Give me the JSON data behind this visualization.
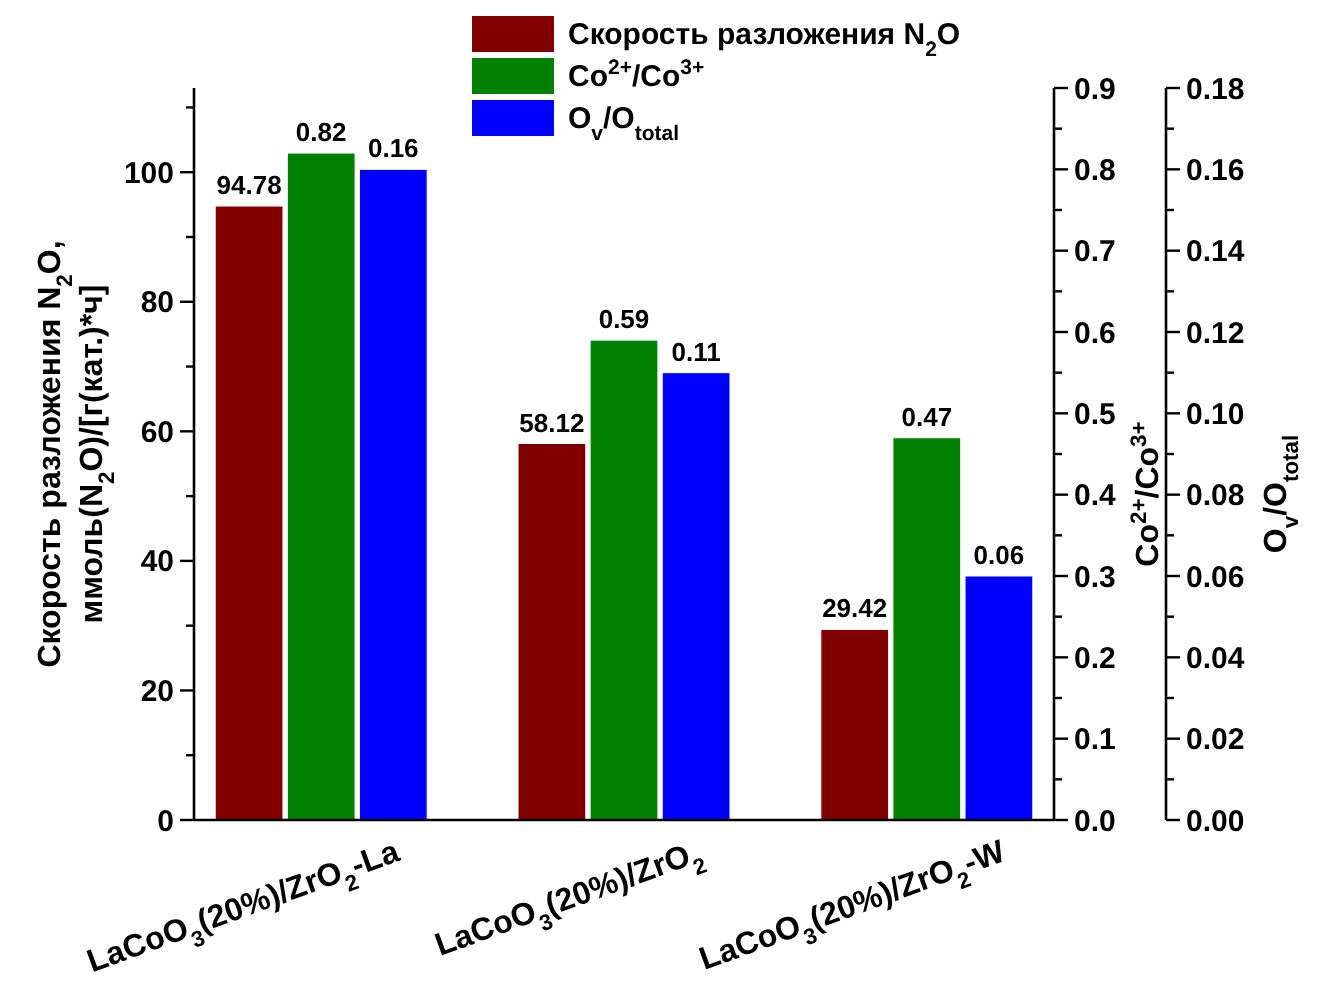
{
  "chart_data": {
    "type": "bar",
    "ylabel": "Скорость разложения N$_{2}$O,\nммоль(N$_{2}$O)/[г(кат.)*ч]",
    "y2label": "Co$^{2+}$/Co$^{3+}$",
    "y3label": "O$_{v}$/O$_{total}$",
    "categories": [
      "LaCoO$_{3}$(20%)/ZrO$_{2}$-La",
      "LaCoO$_{3}$(20%)/ZrO$_{2}$",
      "LaCoO$_{3}$(20%)/ZrO$_{2}$-W"
    ],
    "series": [
      {
        "name": "Скорость разложения N$_{2}$O",
        "color": "#800000",
        "values": [
          94.78,
          58.12,
          29.42
        ]
      },
      {
        "name": "Co$^{2+}$/Co$^{3+}$",
        "color": "#008000",
        "values": [
          0.82,
          0.59,
          0.47
        ],
        "axis": "y2"
      },
      {
        "name": "O$_{v}$/O$_{total}$",
        "color": "#0000ff",
        "values": [
          0.16,
          0.11,
          0.06
        ],
        "axis": "y3"
      }
    ],
    "ylim": [
      0,
      113
    ],
    "yticks": [
      0,
      {
        "value": 10,
        "label": null
      },
      20,
      {
        "value": 30,
        "label": null
      },
      40,
      {
        "value": 50,
        "label": null
      },
      60,
      {
        "value": 70,
        "label": null
      },
      80,
      {
        "value": 90,
        "label": null
      },
      100,
      {
        "value": 110,
        "label": null
      }
    ],
    "y2lim": [
      0,
      0.9
    ],
    "y2ticks": [
      {
        "value": 0,
        "label": "0.0"
      },
      {
        "value": 0.05,
        "label": null
      },
      0.1,
      {
        "value": 0.15,
        "label": null
      },
      0.2,
      {
        "value": 0.25,
        "label": null
      },
      0.3,
      {
        "value": 0.35,
        "label": null
      },
      0.4,
      {
        "value": 0.45,
        "label": null
      },
      0.5,
      {
        "value": 0.55,
        "label": null
      },
      0.6,
      {
        "value": 0.65,
        "label": null
      },
      0.7,
      {
        "value": 0.75,
        "label": null
      },
      0.8,
      {
        "value": 0.85,
        "label": null
      },
      0.9
    ],
    "y3lim": [
      0,
      0.18
    ],
    "y3ticks": [
      {
        "value": 0,
        "label": "0.00"
      },
      {
        "value": 0.01,
        "label": null
      },
      0.02,
      {
        "value": 0.03,
        "label": null
      },
      0.04,
      {
        "value": 0.05,
        "label": null
      },
      0.06,
      {
        "value": 0.07,
        "label": null
      },
      0.08,
      {
        "value": 0.09,
        "label": null
      },
      {
        "value": 0.1,
        "label": "0.10"
      },
      {
        "value": 0.11,
        "label": null
      },
      0.12,
      {
        "value": 0.13,
        "label": null
      },
      0.14,
      {
        "value": 0.15,
        "label": null
      },
      0.16,
      {
        "value": 0.17,
        "label": null
      },
      0.18
    ],
    "data_labels": true,
    "legend": "top"
  }
}
